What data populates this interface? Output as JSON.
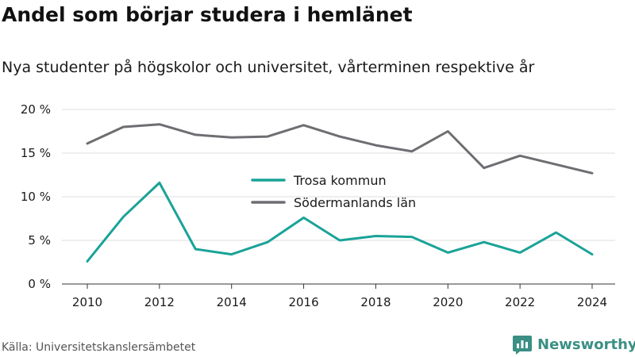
{
  "title": "Andel som börjar studera i hemlänet",
  "subtitle": "Nya studenter på högskolor och universitet, vårterminen respektive år",
  "source": "Källa: Universitetskanslersämbetet",
  "brand": {
    "name": "Newsworthy",
    "icon": "newsworthy-logo-icon",
    "color": "#3b8f84"
  },
  "chart_data": {
    "type": "line",
    "x": [
      2010,
      2011,
      2012,
      2013,
      2014,
      2015,
      2016,
      2017,
      2018,
      2019,
      2020,
      2021,
      2022,
      2023,
      2024
    ],
    "xticks": [
      "2010",
      "2012",
      "2014",
      "2016",
      "2018",
      "2020",
      "2022",
      "2024"
    ],
    "yticks": [
      "0 %",
      "5 %",
      "10 %",
      "15 %",
      "20 %"
    ],
    "ylim": [
      0,
      20
    ],
    "grid": true,
    "legend_position": "center",
    "series": [
      {
        "name": "Trosa kommun",
        "color": "#1aa398",
        "values": [
          2.6,
          7.7,
          11.6,
          4.0,
          3.4,
          4.8,
          7.6,
          5.0,
          5.5,
          5.4,
          3.6,
          4.8,
          3.6,
          5.9,
          3.4
        ]
      },
      {
        "name": "Södermanlands län",
        "color": "#6e6d72",
        "values": [
          16.1,
          18.0,
          18.3,
          17.1,
          16.8,
          16.9,
          18.2,
          16.9,
          15.9,
          15.2,
          17.5,
          13.3,
          14.7,
          13.7,
          12.7
        ]
      }
    ]
  }
}
